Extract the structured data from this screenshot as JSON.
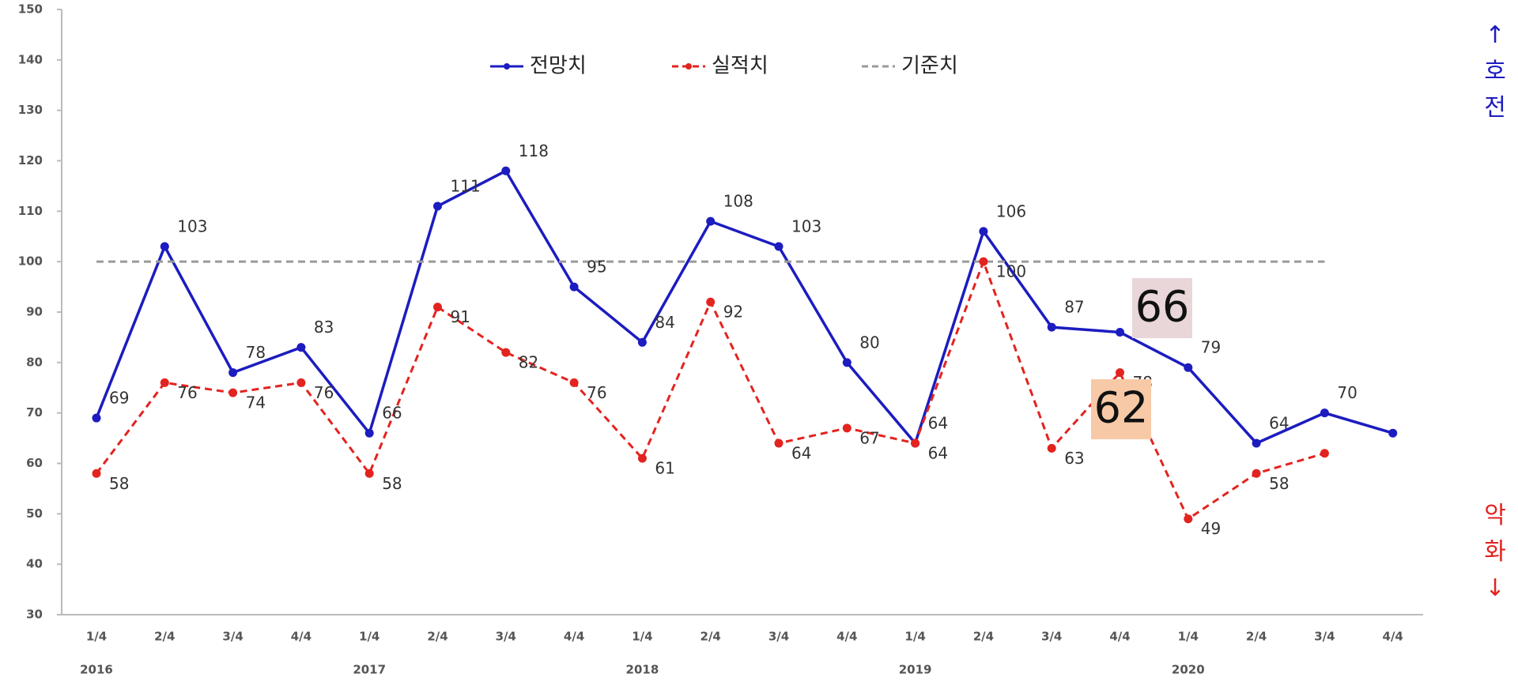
{
  "chart_data": {
    "type": "line",
    "categories": [
      "1/4",
      "2/4",
      "3/4",
      "4/4",
      "1/4",
      "2/4",
      "3/4",
      "4/4",
      "1/4",
      "2/4",
      "3/4",
      "4/4",
      "1/4",
      "2/4",
      "3/4",
      "4/4",
      "1/4",
      "2/4",
      "3/4",
      "4/4"
    ],
    "years": [
      "2016",
      null,
      null,
      null,
      "2017",
      null,
      null,
      null,
      "2018",
      null,
      null,
      null,
      "2019",
      null,
      null,
      null,
      "2020",
      null,
      null,
      null
    ],
    "ylim": [
      30,
      150
    ],
    "yticks": [
      30,
      40,
      50,
      60,
      70,
      80,
      90,
      100,
      110,
      120,
      130,
      140,
      150
    ],
    "series": [
      {
        "name": "전망치",
        "color": "#1c1cc0",
        "dash": false,
        "markers": true,
        "labels": true,
        "highlight": {
          "index": 19,
          "color": "#e9d6d9"
        },
        "values": [
          69,
          103,
          78,
          83,
          66,
          111,
          118,
          95,
          84,
          108,
          103,
          80,
          64,
          106,
          87,
          86,
          79,
          64,
          70,
          66
        ]
      },
      {
        "name": "실적치",
        "color": "#e3231f",
        "dash": true,
        "markers": true,
        "labels": true,
        "highlight": {
          "index": 18,
          "color": "#f7c9a6"
        },
        "values": [
          58,
          76,
          74,
          76,
          58,
          91,
          82,
          76,
          61,
          92,
          64,
          67,
          64,
          100,
          63,
          78,
          49,
          58,
          62,
          null
        ]
      },
      {
        "name": "기준치",
        "color": "#9a9a9a",
        "dash": true,
        "markers": false,
        "labels": false,
        "values": [
          100,
          100,
          100,
          100,
          100,
          100,
          100,
          100,
          100,
          100,
          100,
          100,
          100,
          100,
          100,
          100,
          100,
          100,
          100,
          null
        ]
      }
    ],
    "annotations": [
      {
        "text": "↑호전",
        "color": "#1c1cc0"
      },
      {
        "text": "악화↓",
        "color": "#e3231f"
      }
    ]
  }
}
